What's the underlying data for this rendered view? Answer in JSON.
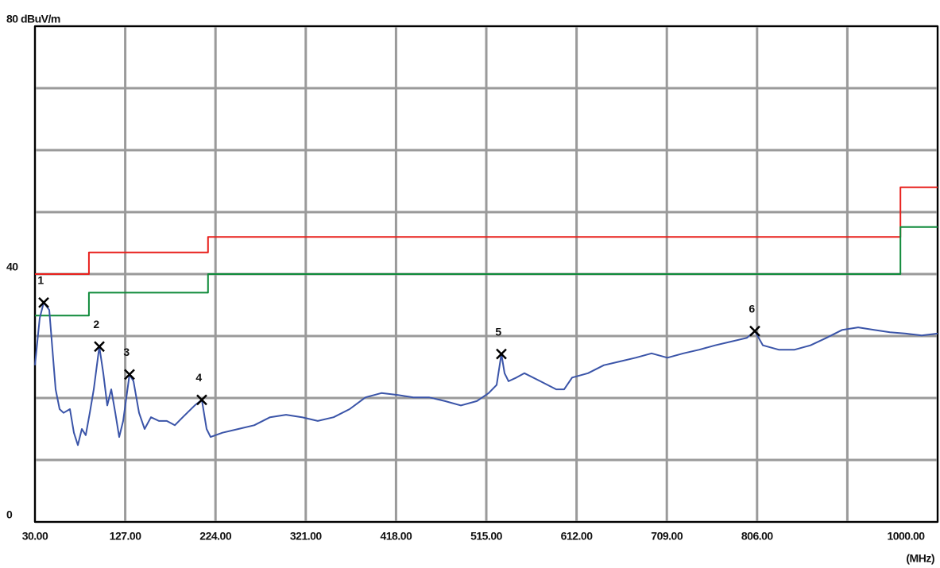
{
  "chart_data": {
    "type": "line",
    "x_label": "(MHz)",
    "xlim": [
      30,
      1000
    ],
    "ylim": [
      0,
      80
    ],
    "xticks": [
      {
        "value": 30,
        "label": "30.00"
      },
      {
        "value": 127,
        "label": "127.00"
      },
      {
        "value": 224,
        "label": "224.00"
      },
      {
        "value": 321,
        "label": "321.00"
      },
      {
        "value": 418,
        "label": "418.00"
      },
      {
        "value": 515,
        "label": "515.00"
      },
      {
        "value": 612,
        "label": "612.00"
      },
      {
        "value": 709,
        "label": "709.00"
      },
      {
        "value": 806,
        "label": "806.00"
      },
      {
        "value": 903,
        "label": null
      },
      {
        "value": 1000,
        "label": "1000.00"
      }
    ],
    "yticks": [
      0,
      {
        "value": 10,
        "label": null
      },
      {
        "value": 20,
        "label": null
      },
      {
        "value": 30,
        "label": null
      },
      40,
      {
        "value": 50,
        "label": null
      },
      {
        "value": 60,
        "label": null
      },
      {
        "value": 70,
        "label": null
      },
      {
        "value": 80,
        "label": "80 dBuV/m"
      }
    ],
    "grid": true,
    "series": [
      {
        "color": "#e8201c",
        "x": [
          30,
          88,
          88,
          216,
          216,
          960,
          960,
          1000
        ],
        "values": [
          40,
          40,
          43.5,
          43.5,
          46,
          46,
          54,
          54
        ]
      },
      {
        "color": "#0f8a3a",
        "x": [
          30,
          88,
          88,
          216,
          216,
          960,
          960,
          1000
        ],
        "values": [
          33.3,
          33.3,
          37,
          37,
          40,
          40,
          47.6,
          47.6
        ]
      },
      {
        "color": "#3a54a8",
        "x": [
          30,
          35.1,
          39.4,
          45.4,
          48.8,
          52.2,
          56.5,
          60.7,
          67.6,
          71.8,
          76.1,
          80.4,
          84.6,
          88.9,
          93.2,
          99.2,
          103.4,
          107.7,
          112,
          116.3,
          120.5,
          124.8,
          131.6,
          135.9,
          141.9,
          147.8,
          154.7,
          163.2,
          171.7,
          180.3,
          188.8,
          201.6,
          209.3,
          214.4,
          218.7,
          231.5,
          248.6,
          265.6,
          282.7,
          299.8,
          316.9,
          333.9,
          351,
          368.1,
          385.2,
          402.3,
          419.4,
          436.5,
          453.5,
          470.6,
          487.7,
          504.8,
          517.6,
          526.1,
          531.2,
          534.6,
          538.9,
          547.4,
          556,
          573.1,
          590.1,
          598.7,
          607.2,
          624.3,
          641.4,
          658.5,
          675.5,
          692.6,
          709.7,
          726.8,
          743.9,
          760.9,
          778,
          795.1,
          803.6,
          812.2,
          829.2,
          846.3,
          863.4,
          880.5,
          897.6,
          914.6,
          931.7,
          948.8,
          965.9,
          982.9,
          1000
        ],
        "values": [
          25.3,
          32.9,
          35.4,
          34.2,
          27.8,
          21.4,
          18.2,
          17.6,
          18.2,
          14.4,
          12.4,
          15,
          14,
          17.6,
          21.4,
          28.3,
          24,
          18.8,
          21.4,
          17.6,
          13.7,
          16.3,
          23.8,
          22.7,
          17.6,
          15,
          16.9,
          16.3,
          16.3,
          15.6,
          16.9,
          18.8,
          19.7,
          15,
          13.7,
          14.4,
          15,
          15.6,
          16.9,
          17.3,
          16.9,
          16.3,
          16.9,
          18.2,
          20.1,
          20.8,
          20.5,
          20.1,
          20.1,
          19.5,
          18.8,
          19.5,
          20.8,
          22.1,
          27.1,
          24,
          22.7,
          23.3,
          24,
          22.7,
          21.4,
          21.4,
          23.3,
          24,
          25.3,
          25.9,
          26.5,
          27.2,
          26.5,
          27.2,
          27.8,
          28.5,
          29.1,
          29.7,
          30.8,
          28.5,
          27.8,
          27.8,
          28.5,
          29.7,
          31,
          31.4,
          31,
          30.6,
          30.4,
          30.1,
          30.4
        ]
      }
    ],
    "markers": [
      {
        "label": "1",
        "x": 39.4,
        "value": 35.4
      },
      {
        "label": "2",
        "x": 99.2,
        "value": 28.3
      },
      {
        "label": "3",
        "x": 131.6,
        "value": 23.8
      },
      {
        "label": "4",
        "x": 209.3,
        "value": 19.7
      },
      {
        "label": "5",
        "x": 531.2,
        "value": 27.1
      },
      {
        "label": "6",
        "x": 803.6,
        "value": 30.8
      }
    ]
  }
}
